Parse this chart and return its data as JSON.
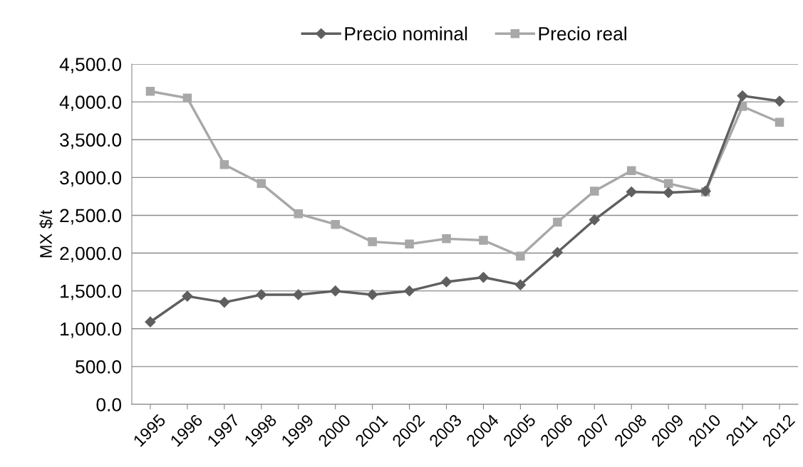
{
  "chart_data": {
    "type": "line",
    "ylabel": "MX $/t",
    "categories": [
      "1995",
      "1996",
      "1997",
      "1998",
      "1999",
      "2000",
      "2001",
      "2002",
      "2003",
      "2004",
      "2005",
      "2006",
      "2007",
      "2008",
      "2009",
      "2010",
      "2011",
      "2012"
    ],
    "series": [
      {
        "name": "Precio nominal",
        "color": "#5f5f5f",
        "marker": "diamond",
        "values": [
          1090,
          1430,
          1350,
          1450,
          1450,
          1500,
          1450,
          1500,
          1620,
          1680,
          1580,
          2010,
          2440,
          2810,
          2800,
          2820,
          4080,
          4010
        ]
      },
      {
        "name": "Precio real",
        "color": "#a8a8a8",
        "marker": "square",
        "values": [
          4140,
          4050,
          3170,
          2920,
          2520,
          2380,
          2150,
          2120,
          2190,
          2170,
          1960,
          2410,
          2820,
          3090,
          2920,
          2810,
          3940,
          3730
        ]
      }
    ],
    "ylim": [
      0,
      4500
    ],
    "yticks": [
      {
        "value": 0,
        "label": "0.0"
      },
      {
        "value": 500,
        "label": "500.0"
      },
      {
        "value": 1000,
        "label": "1,000.0"
      },
      {
        "value": 1500,
        "label": "1,500.0"
      },
      {
        "value": 2000,
        "label": "2,000.0"
      },
      {
        "value": 2500,
        "label": "2,500.0"
      },
      {
        "value": 3000,
        "label": "3,000.0"
      },
      {
        "value": 3500,
        "label": "3,500.0"
      },
      {
        "value": 4000,
        "label": "4,000.0"
      },
      {
        "value": 4500,
        "label": "4,500.0"
      }
    ],
    "grid": "y",
    "legend": "top",
    "line_style": "solid"
  }
}
